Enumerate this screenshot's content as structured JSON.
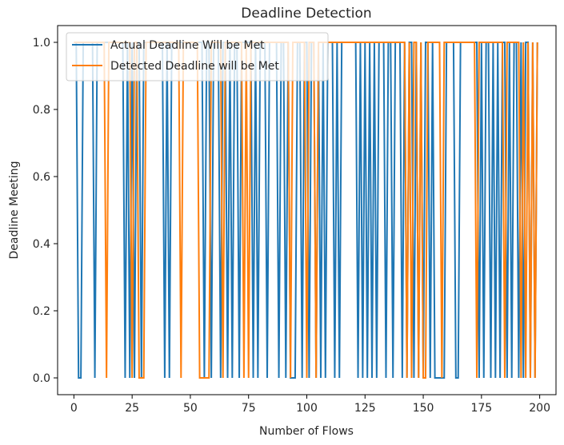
{
  "chart_data": {
    "type": "line",
    "title": "Deadline Detection",
    "xlabel": "Number of Flows",
    "ylabel": "Deadline Meeting",
    "xlim": [
      -7,
      207
    ],
    "ylim": [
      -0.05,
      1.05
    ],
    "xticks": [
      0,
      25,
      50,
      75,
      100,
      125,
      150,
      175,
      200
    ],
    "yticks": [
      0.0,
      0.2,
      0.4,
      0.6,
      0.8,
      1.0
    ],
    "xtick_labels": [
      "0",
      "25",
      "50",
      "75",
      "100",
      "125",
      "150",
      "175",
      "200"
    ],
    "ytick_labels": [
      "0.0",
      "0.2",
      "0.4",
      "0.6",
      "0.8",
      "1.0"
    ],
    "grid": false,
    "legend_position": "top-left",
    "series": [
      {
        "name": "Actual Deadline Will be Met",
        "color": "#1f77b4",
        "x_start": 0,
        "values": [
          1,
          1,
          0,
          0,
          1,
          1,
          1,
          1,
          1,
          0,
          1,
          1,
          1,
          1,
          1,
          1,
          1,
          1,
          1,
          1,
          1,
          1,
          0,
          1,
          0,
          1,
          0,
          1,
          1,
          0,
          1,
          1,
          1,
          1,
          1,
          1,
          1,
          1,
          1,
          0,
          1,
          0,
          1,
          1,
          1,
          1,
          1,
          1,
          1,
          1,
          1,
          1,
          1,
          1,
          1,
          1,
          0,
          1,
          1,
          0,
          1,
          1,
          1,
          0,
          1,
          1,
          0,
          1,
          0,
          1,
          1,
          0,
          1,
          1,
          1,
          1,
          1,
          0,
          1,
          0,
          1,
          1,
          1,
          0,
          1,
          1,
          1,
          1,
          0,
          1,
          1,
          0,
          1,
          0,
          0,
          0,
          1,
          1,
          0,
          1,
          1,
          0,
          1,
          1,
          0,
          1,
          0,
          1,
          0,
          1,
          1,
          1,
          0,
          1,
          0,
          1,
          1,
          1,
          1,
          1,
          1,
          1,
          0,
          1,
          0,
          1,
          0,
          1,
          0,
          1,
          0,
          1,
          1,
          1,
          0,
          1,
          1,
          0,
          1,
          1,
          1,
          0,
          1,
          0,
          1,
          1,
          0,
          1,
          0,
          1,
          0,
          1,
          1,
          0,
          1,
          0,
          0,
          0,
          0,
          0,
          1,
          1,
          1,
          1,
          0,
          0,
          1,
          1,
          1,
          1,
          1,
          1,
          1,
          1,
          0,
          1,
          0,
          1,
          1,
          0,
          1,
          0,
          1,
          0,
          1,
          1,
          0,
          1,
          0,
          1,
          1,
          0,
          1,
          0,
          1,
          1,
          0,
          1,
          0,
          1
        ]
      },
      {
        "name": "Detected Deadline will be Met",
        "color": "#ff7f0e",
        "x_start": 0,
        "values": [
          1,
          1,
          1,
          1,
          1,
          1,
          1,
          1,
          1,
          1,
          1,
          1,
          1,
          1,
          0,
          1,
          1,
          1,
          1,
          1,
          1,
          1,
          1,
          1,
          1,
          0,
          1,
          1,
          0,
          0,
          0,
          1,
          1,
          1,
          1,
          1,
          1,
          1,
          1,
          1,
          1,
          1,
          1,
          1,
          1,
          1,
          0,
          1,
          1,
          1,
          1,
          1,
          1,
          1,
          0,
          0,
          0,
          0,
          0,
          1,
          1,
          1,
          1,
          1,
          0,
          1,
          1,
          1,
          1,
          1,
          1,
          1,
          1,
          0,
          1,
          0,
          1,
          1,
          1,
          1,
          1,
          1,
          1,
          1,
          1,
          1,
          1,
          1,
          1,
          1,
          1,
          1,
          1,
          0,
          1,
          1,
          1,
          1,
          1,
          1,
          0,
          1,
          1,
          1,
          0,
          1,
          1,
          1,
          1,
          1,
          1,
          1,
          1,
          1,
          1,
          1,
          1,
          1,
          1,
          1,
          1,
          1,
          1,
          1,
          1,
          1,
          1,
          1,
          1,
          1,
          1,
          1,
          1,
          1,
          1,
          1,
          1,
          1,
          1,
          1,
          1,
          1,
          1,
          0,
          1,
          0,
          1,
          1,
          0,
          1,
          0,
          0,
          1,
          1,
          1,
          1,
          1,
          1,
          0,
          1,
          1,
          1,
          1,
          1,
          1,
          1,
          1,
          1,
          1,
          1,
          1,
          1,
          1,
          0,
          1,
          1,
          1,
          1,
          1,
          1,
          1,
          1,
          1,
          1,
          1,
          0,
          1,
          1,
          1,
          1,
          1,
          1,
          0,
          1,
          0,
          1,
          0,
          1,
          0,
          1
        ]
      }
    ]
  }
}
